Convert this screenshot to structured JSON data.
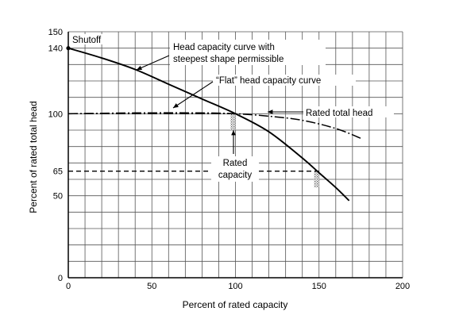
{
  "chart_data": {
    "type": "line",
    "xlabel": "Percent of rated capacity",
    "ylabel": "Percent of rated total head",
    "xlim": [
      0,
      200
    ],
    "ylim": [
      0,
      150
    ],
    "x_ticks": [
      0,
      50,
      100,
      150,
      200
    ],
    "y_ticks": [
      0,
      50,
      65,
      100,
      140,
      150
    ],
    "grid": true,
    "grid_step": {
      "x": 10,
      "y": 10
    },
    "series": [
      {
        "name": "Head capacity curve with steepest shape permissible",
        "style": "solid",
        "x": [
          0,
          20,
          40,
          60,
          80,
          100,
          120,
          140,
          150,
          160,
          168
        ],
        "y": [
          140,
          134,
          127,
          118,
          109,
          100,
          89,
          73,
          64,
          55,
          47
        ]
      },
      {
        "name": "“Flat” head capacity curve",
        "style": "dash-dot",
        "x": [
          0,
          40,
          80,
          100,
          120,
          140,
          160,
          175
        ],
        "y": [
          100,
          100.5,
          100.5,
          100,
          98.5,
          96,
          91,
          85
        ]
      }
    ],
    "reference_lines": [
      {
        "label": "Rated total head",
        "axis": "y",
        "value": 100,
        "style": "dash-dot",
        "x_range": [
          0,
          100
        ]
      },
      {
        "axis": "y",
        "value": 65,
        "style": "dashed",
        "x_range": [
          0,
          150
        ]
      }
    ],
    "annotations": [
      {
        "text": "Shutoff"
      },
      {
        "text": "Head capacity curve with"
      },
      {
        "text": "steepest shape permissible"
      },
      {
        "text": "“Flat” head capacity curve"
      },
      {
        "text": "Rated total head"
      },
      {
        "text": "Rated"
      },
      {
        "text": "capacity"
      }
    ]
  }
}
